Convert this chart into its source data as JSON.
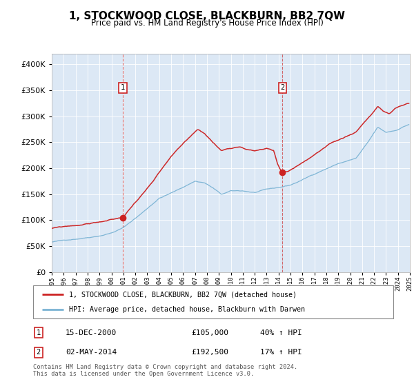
{
  "title": "1, STOCKWOOD CLOSE, BLACKBURN, BB2 7QW",
  "subtitle": "Price paid vs. HM Land Registry's House Price Index (HPI)",
  "legend_line1": "1, STOCKWOOD CLOSE, BLACKBURN, BB2 7QW (detached house)",
  "legend_line2": "HPI: Average price, detached house, Blackburn with Darwen",
  "annotation1_date": "15-DEC-2000",
  "annotation1_price": "£105,000",
  "annotation1_hpi": "40% ↑ HPI",
  "annotation2_date": "02-MAY-2014",
  "annotation2_price": "£192,500",
  "annotation2_hpi": "17% ↑ HPI",
  "footer": "Contains HM Land Registry data © Crown copyright and database right 2024.\nThis data is licensed under the Open Government Licence v3.0.",
  "hpi_color": "#7ab3d4",
  "price_color": "#cc2222",
  "background_color": "#dce8f5",
  "ylim_min": 0,
  "ylim_max": 420000,
  "sale1_year": 2000.958,
  "sale1_price": 105000,
  "sale2_year": 2014.333,
  "sale2_price": 192500
}
